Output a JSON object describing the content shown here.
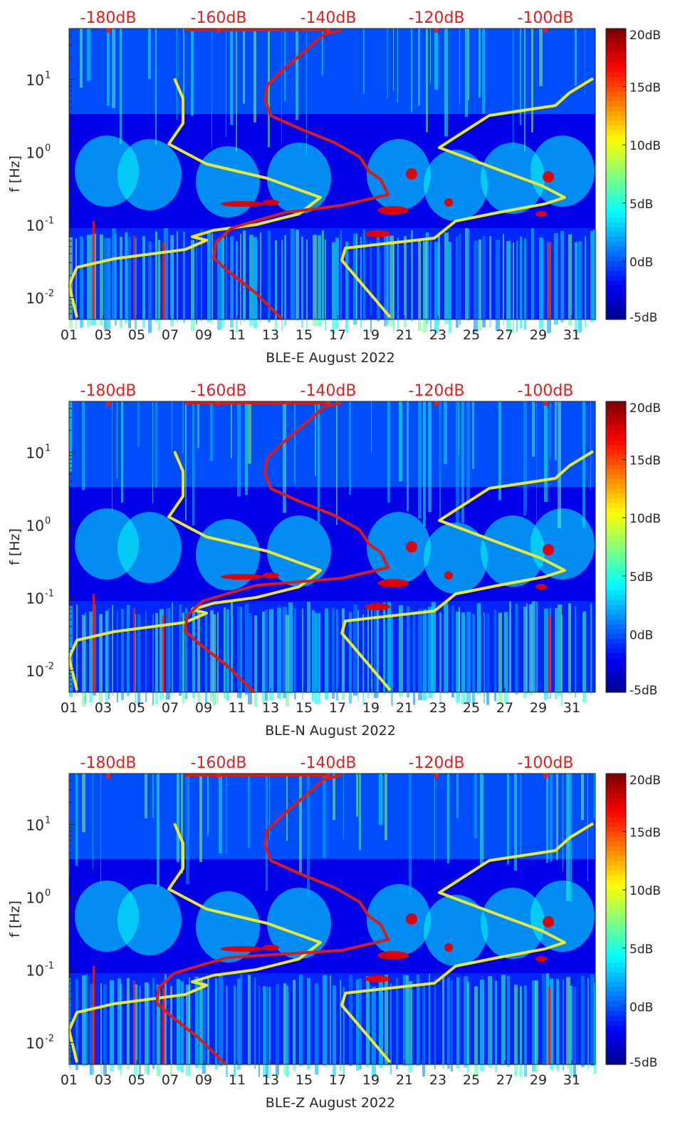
{
  "chart_data": [
    {
      "type": "heatmap",
      "xlabel": "BLE-E August 2022",
      "ylabel": "f [Hz]",
      "xticks": [
        "01",
        "03",
        "05",
        "07",
        "09",
        "11",
        "13",
        "15",
        "17",
        "19",
        "21",
        "23",
        "25",
        "27",
        "29",
        "31"
      ],
      "yticks": [
        "10^-2",
        "10^-1",
        "10^0",
        "10^1"
      ],
      "ylim": [
        0.005,
        50
      ],
      "yscale": "log",
      "top_ticks": [
        "-180dB",
        "-160dB",
        "-140dB",
        "-120dB",
        "-100dB"
      ],
      "colorbar": {
        "ticks": [
          "-5dB",
          "0dB",
          "5dB",
          "10dB",
          "15dB",
          "20dB"
        ],
        "range": [
          -5,
          20
        ],
        "colormap": "jet"
      },
      "overlay_colors": {
        "model": "#e8e838",
        "noise": "#d81c1c"
      }
    },
    {
      "type": "heatmap",
      "xlabel": "BLE-N August 2022",
      "ylabel": "f [Hz]",
      "xticks": [
        "01",
        "03",
        "05",
        "07",
        "09",
        "11",
        "13",
        "15",
        "17",
        "19",
        "21",
        "23",
        "25",
        "27",
        "29",
        "31"
      ],
      "yticks": [
        "10^-2",
        "10^-1",
        "10^0",
        "10^1"
      ],
      "ylim": [
        0.005,
        50
      ],
      "yscale": "log",
      "top_ticks": [
        "-180dB",
        "-160dB",
        "-140dB",
        "-120dB",
        "-100dB"
      ],
      "colorbar": {
        "ticks": [
          "-5dB",
          "0dB",
          "5dB",
          "10dB",
          "15dB",
          "20dB"
        ],
        "range": [
          -5,
          20
        ],
        "colormap": "jet"
      },
      "overlay_colors": {
        "model": "#e8e838",
        "noise": "#d81c1c"
      }
    },
    {
      "type": "heatmap",
      "xlabel": "BLE-Z August 2022",
      "ylabel": "f [Hz]",
      "xticks": [
        "01",
        "03",
        "05",
        "07",
        "09",
        "11",
        "13",
        "15",
        "17",
        "19",
        "21",
        "23",
        "25",
        "27",
        "29",
        "31"
      ],
      "yticks": [
        "10^-2",
        "10^-1",
        "10^0",
        "10^1"
      ],
      "ylim": [
        0.005,
        50
      ],
      "yscale": "log",
      "top_ticks": [
        "-180dB",
        "-160dB",
        "-140dB",
        "-120dB",
        "-100dB"
      ],
      "colorbar": {
        "ticks": [
          "-5dB",
          "0dB",
          "5dB",
          "10dB",
          "15dB",
          "20dB"
        ],
        "range": [
          -5,
          20
        ],
        "colormap": "jet"
      },
      "overlay_colors": {
        "model": "#e8e838",
        "noise": "#d81c1c"
      }
    }
  ]
}
